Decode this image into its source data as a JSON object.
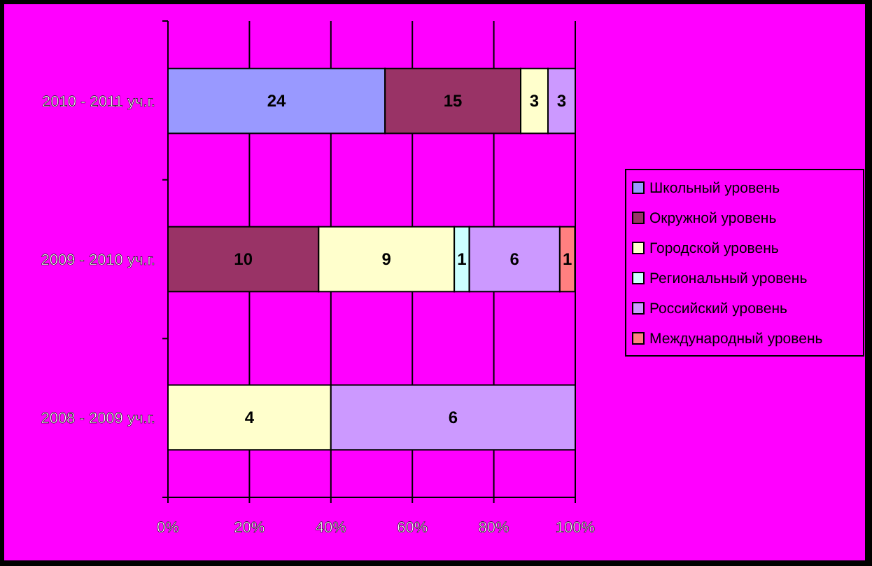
{
  "chart_data": {
    "type": "bar",
    "orientation": "horizontal",
    "stacked": true,
    "categories": [
      "2010 - 2011 уч.г.",
      "2009 - 2010 уч.г.",
      "2008 - 2009 уч.г."
    ],
    "series": [
      {
        "name": "Школьный уровень",
        "color": "#9999ff",
        "values": [
          53.3,
          null,
          null
        ]
      },
      {
        "name": "Окружной уровень",
        "color": "#993366",
        "values": [
          33.3,
          37.0,
          null
        ]
      },
      {
        "name": "Городской уровень",
        "color": "#ffffcc",
        "values": [
          6.7,
          33.3,
          40
        ]
      },
      {
        "name": "Региональный уровень",
        "color": "#ccffff",
        "values": [
          null,
          3.7,
          null
        ]
      },
      {
        "name": "Российский уровень",
        "color": "#cc99ff",
        "values": [
          6.7,
          22.2,
          60
        ]
      },
      {
        "name": "Международный уровень",
        "color": "#ff8080",
        "values": [
          null,
          3.7,
          null
        ]
      }
    ],
    "annotations": [
      "24",
      "15",
      "3",
      "3",
      "10",
      "9",
      "1",
      "6",
      "1",
      "4",
      "6"
    ],
    "xlim": [
      0,
      100
    ],
    "xticks": [
      {
        "value": 0,
        "label": "0%"
      },
      {
        "value": 20,
        "label": "20%"
      },
      {
        "value": 40,
        "label": "40%"
      },
      {
        "value": 60,
        "label": "60%"
      },
      {
        "value": 80,
        "label": "80%"
      },
      {
        "value": 100,
        "label": "100%"
      }
    ],
    "grid": "x",
    "legend": "right"
  }
}
